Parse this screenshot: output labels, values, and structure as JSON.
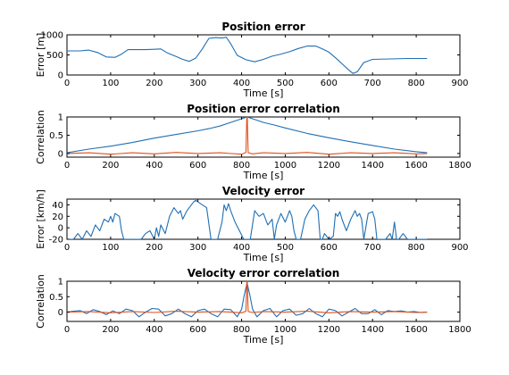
{
  "colors": {
    "blue": "#1f6fb4",
    "orange": "#e0501a"
  },
  "chart_data": [
    {
      "type": "line",
      "title": "Position error",
      "xlabel": "Time [s]",
      "ylabel": "Error [m]",
      "xlim": [
        0,
        900
      ],
      "ylim": [
        0,
        1000
      ],
      "xticks": [
        0,
        100,
        200,
        300,
        400,
        500,
        600,
        700,
        800,
        900
      ],
      "yticks": [
        0,
        500,
        1000
      ],
      "grid": false,
      "series": [
        {
          "color": "#1f6fb4",
          "x": [
            0,
            30,
            50,
            70,
            90,
            110,
            125,
            140,
            160,
            180,
            200,
            215,
            230,
            250,
            265,
            280,
            295,
            310,
            325,
            340,
            355,
            365,
            375,
            390,
            410,
            430,
            450,
            470,
            490,
            510,
            530,
            550,
            570,
            585,
            600,
            615,
            630,
            645,
            655,
            665,
            680,
            700,
            740,
            780,
            825
          ],
          "y": [
            600,
            600,
            620,
            560,
            450,
            440,
            520,
            630,
            630,
            630,
            640,
            650,
            550,
            460,
            390,
            340,
            420,
            650,
            910,
            930,
            920,
            940,
            780,
            490,
            380,
            330,
            390,
            470,
            520,
            580,
            660,
            720,
            720,
            650,
            570,
            430,
            280,
            130,
            40,
            80,
            310,
            390,
            400,
            410,
            410
          ]
        }
      ]
    },
    {
      "type": "line",
      "title": "Position error correlation",
      "xlabel": "Time [s]",
      "ylabel": "Correlation",
      "xlim": [
        0,
        1800
      ],
      "ylim": [
        -0.1,
        1
      ],
      "xticks": [
        0,
        200,
        400,
        600,
        800,
        1000,
        1200,
        1400,
        1600,
        1800
      ],
      "yticks": [
        0,
        0.5,
        1
      ],
      "grid": false,
      "series": [
        {
          "color": "#1f6fb4",
          "x": [
            0,
            100,
            200,
            300,
            400,
            500,
            600,
            650,
            700,
            750,
            800,
            825,
            850,
            900,
            950,
            1000,
            1100,
            1200,
            1300,
            1400,
            1500,
            1600,
            1650
          ],
          "y": [
            0.02,
            0.12,
            0.2,
            0.3,
            0.42,
            0.52,
            0.62,
            0.68,
            0.75,
            0.85,
            0.95,
            1.0,
            0.95,
            0.85,
            0.78,
            0.7,
            0.55,
            0.43,
            0.32,
            0.22,
            0.12,
            0.05,
            0.02
          ]
        },
        {
          "color": "#e0501a",
          "x": [
            0,
            100,
            200,
            300,
            400,
            500,
            600,
            700,
            800,
            820,
            824,
            826,
            830,
            850,
            900,
            1000,
            1100,
            1200,
            1300,
            1400,
            1500,
            1600,
            1650
          ],
          "y": [
            0.0,
            0.02,
            -0.02,
            0.02,
            -0.01,
            0.03,
            0.0,
            0.02,
            -0.02,
            0.03,
            1.0,
            1.0,
            0.02,
            -0.01,
            0.02,
            0.0,
            0.03,
            -0.02,
            0.02,
            0.0,
            0.02,
            -0.01,
            0.0
          ]
        }
      ]
    },
    {
      "type": "line",
      "title": "Velocity error",
      "xlabel": "Time [s]",
      "ylabel": "Error [km/h]",
      "xlim": [
        0,
        900
      ],
      "ylim": [
        -20,
        50
      ],
      "xticks": [
        0,
        100,
        200,
        300,
        400,
        500,
        600,
        700,
        800,
        900
      ],
      "yticks": [
        -20,
        0,
        20,
        40
      ],
      "grid": false,
      "series": [
        {
          "color": "#1f6fb4",
          "x": [
            0,
            15,
            25,
            35,
            45,
            55,
            65,
            75,
            85,
            95,
            100,
            105,
            110,
            120,
            125,
            130,
            135,
            150,
            170,
            180,
            190,
            200,
            205,
            210,
            215,
            225,
            235,
            245,
            255,
            260,
            265,
            275,
            285,
            290,
            295,
            300,
            310,
            320,
            330,
            335,
            345,
            355,
            360,
            365,
            370,
            375,
            385,
            395,
            405,
            410,
            415,
            420,
            430,
            440,
            450,
            460,
            470,
            475,
            480,
            490,
            500,
            510,
            515,
            520,
            525,
            535,
            545,
            555,
            565,
            575,
            580,
            585,
            590,
            600,
            610,
            615,
            620,
            625,
            630,
            640,
            650,
            660,
            665,
            670,
            675,
            680,
            690,
            700,
            705,
            710,
            720,
            730,
            740,
            745,
            750,
            755,
            760,
            770,
            780,
            790,
            800,
            810,
            825
          ],
          "y": [
            -20,
            -20,
            -10,
            -20,
            -5,
            -15,
            5,
            -5,
            15,
            10,
            20,
            10,
            25,
            20,
            -5,
            -20,
            -20,
            -20,
            -20,
            -10,
            -5,
            -20,
            0,
            -15,
            5,
            -10,
            20,
            35,
            25,
            30,
            15,
            30,
            40,
            45,
            48,
            45,
            40,
            35,
            -20,
            -20,
            -20,
            10,
            40,
            30,
            42,
            30,
            10,
            -5,
            -20,
            -20,
            -20,
            -20,
            30,
            20,
            25,
            5,
            15,
            -20,
            5,
            25,
            10,
            30,
            20,
            -5,
            -20,
            -20,
            15,
            30,
            40,
            30,
            -20,
            -20,
            -10,
            -20,
            -15,
            25,
            20,
            28,
            15,
            -5,
            15,
            30,
            20,
            25,
            15,
            -20,
            25,
            28,
            15,
            -20,
            -20,
            -20,
            -10,
            -20,
            10,
            -20,
            -20,
            -10,
            -20,
            -20,
            -20,
            -20,
            -20
          ]
        }
      ]
    },
    {
      "type": "line",
      "title": "Velocity error correlation",
      "xlabel": "Time [s]",
      "ylabel": "Correlation",
      "xlim": [
        0,
        1800
      ],
      "ylim": [
        -0.3,
        1
      ],
      "xticks": [
        0,
        200,
        400,
        600,
        800,
        1000,
        1200,
        1400,
        1600,
        1800
      ],
      "yticks": [
        0,
        0.5,
        1
      ],
      "grid": false,
      "series": [
        {
          "color": "#1f6fb4",
          "x": [
            0,
            30,
            60,
            90,
            120,
            150,
            180,
            210,
            240,
            270,
            300,
            330,
            360,
            390,
            420,
            450,
            480,
            510,
            540,
            570,
            600,
            630,
            660,
            690,
            720,
            750,
            780,
            800,
            812,
            825,
            838,
            850,
            870,
            900,
            930,
            960,
            990,
            1020,
            1050,
            1080,
            1110,
            1140,
            1170,
            1200,
            1230,
            1260,
            1290,
            1320,
            1350,
            1380,
            1410,
            1440,
            1470,
            1500,
            1530,
            1560,
            1590,
            1620,
            1650
          ],
          "y": [
            0.0,
            0.03,
            0.05,
            -0.05,
            0.08,
            0.02,
            -0.08,
            0.04,
            -0.05,
            0.1,
            0.05,
            -0.15,
            0.0,
            0.12,
            0.1,
            -0.12,
            -0.05,
            0.1,
            -0.05,
            -0.15,
            0.05,
            0.1,
            -0.05,
            -0.15,
            0.1,
            0.08,
            -0.15,
            0.1,
            0.55,
            0.95,
            0.55,
            0.1,
            -0.15,
            0.05,
            0.12,
            -0.15,
            0.05,
            0.1,
            -0.1,
            -0.05,
            0.12,
            -0.05,
            -0.15,
            0.1,
            0.05,
            -0.12,
            0.0,
            0.12,
            -0.05,
            -0.05,
            0.08,
            -0.08,
            0.05,
            0.02,
            0.04,
            0.0,
            0.02,
            -0.01,
            0.0
          ]
        },
        {
          "color": "#e0501a",
          "x": [
            0,
            100,
            200,
            300,
            400,
            500,
            600,
            700,
            800,
            820,
            824,
            826,
            830,
            850,
            900,
            1000,
            1100,
            1200,
            1300,
            1400,
            1500,
            1600,
            1650
          ],
          "y": [
            0.0,
            0.02,
            -0.02,
            0.02,
            -0.01,
            0.03,
            0.0,
            0.02,
            -0.02,
            0.03,
            1.0,
            1.0,
            0.02,
            -0.01,
            0.02,
            0.0,
            0.03,
            -0.02,
            0.02,
            0.0,
            0.02,
            -0.01,
            0.0
          ]
        }
      ]
    }
  ]
}
